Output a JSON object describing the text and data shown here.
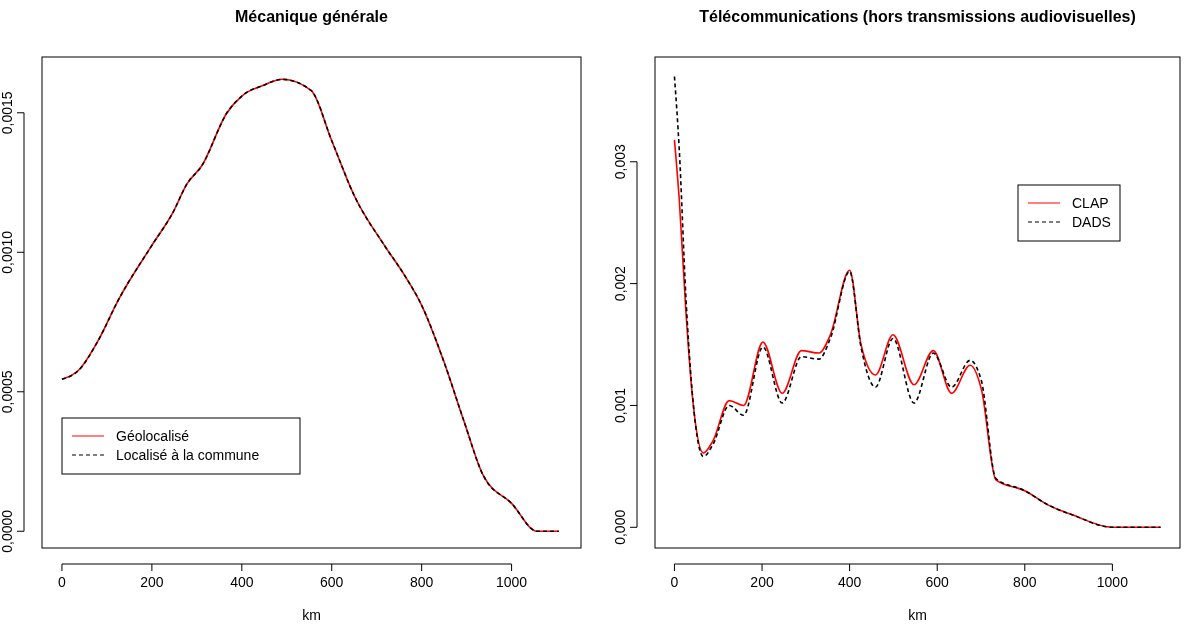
{
  "chart_data": [
    {
      "type": "line",
      "title": "Mécanique générale",
      "xlabel": "km",
      "xlim": [
        -44.4,
        1154.4
      ],
      "xticks": [
        0,
        200,
        400,
        600,
        800,
        1000
      ],
      "ylim": [
        -6e-05,
        0.0017
      ],
      "yticks": [
        {
          "value": 0,
          "label": "0,0000"
        },
        {
          "value": 0.0005,
          "label": "0,0005"
        },
        {
          "value": 0.001,
          "label": "0,0010"
        },
        {
          "value": 0.0015,
          "label": "0,0015"
        }
      ],
      "grid": false,
      "legend": "bottom left",
      "marker": "none",
      "x": [
        0,
        37,
        81,
        125,
        200,
        246,
        278,
        311,
        367,
        400,
        450,
        490,
        554,
        600,
        651,
        717,
        761,
        800,
        849,
        893,
        937,
        1000,
        1057,
        1105
      ],
      "series": [
        {
          "name": "Géolocalisé",
          "color": "#ff0000",
          "line_style": "solid",
          "values": [
            0.000545,
            0.000577,
            0.000685,
            0.000828,
            0.001025,
            0.00114,
            0.001245,
            0.00131,
            0.0015,
            0.00156,
            0.0016,
            0.00162,
            0.00158,
            0.0014,
            0.0012,
            0.001025,
            0.00092,
            0.00081,
            0.00061,
            0.0004,
            0.0002,
            0.0001,
            0,
            0
          ]
        },
        {
          "name": "Localisé à la commune",
          "color": "#000000",
          "line_style": "dashed",
          "values": [
            0.000545,
            0.000577,
            0.000685,
            0.000828,
            0.001025,
            0.00114,
            0.001245,
            0.00131,
            0.0015,
            0.00156,
            0.0016,
            0.00162,
            0.00158,
            0.0014,
            0.0012,
            0.001025,
            0.00092,
            0.00081,
            0.00061,
            0.0004,
            0.0002,
            0.0001,
            0,
            0
          ]
        }
      ]
    },
    {
      "type": "line",
      "title": "Télécommunications (hors transmissions audiovisuelles)",
      "xlabel": "km",
      "xlim": [
        -44.4,
        1154.4
      ],
      "xticks": [
        0,
        200,
        400,
        600,
        800,
        1000
      ],
      "ylim": [
        -0.00017,
        0.00386
      ],
      "yticks": [
        {
          "value": 0,
          "label": "0,000"
        },
        {
          "value": 0.001,
          "label": "0,001"
        },
        {
          "value": 0.002,
          "label": "0,002"
        },
        {
          "value": 0.003,
          "label": "0,003"
        }
      ],
      "grid": false,
      "legend": "top right",
      "marker": "none",
      "x": [
        0,
        11,
        26,
        42,
        66,
        88,
        125,
        158,
        202,
        246,
        290,
        330,
        356,
        400,
        426,
        459,
        499,
        547,
        591,
        633,
        675,
        701,
        734,
        800,
        855,
        910,
        1000,
        1110
      ],
      "series": [
        {
          "name": "CLAP",
          "color": "#ff0000",
          "line_style": "solid",
          "values": [
            0.00318,
            0.00269,
            0.00178,
            0.00104,
            0.00061,
            0.00071,
            0.00104,
            0.001,
            0.00152,
            0.0011,
            0.00145,
            0.00143,
            0.00158,
            0.00211,
            0.0015,
            0.00125,
            0.00158,
            0.00117,
            0.00145,
            0.0011,
            0.00133,
            0.00113,
            0.00039,
            0.0003,
            0.00018,
            0.0001,
            0,
            0
          ]
        },
        {
          "name": "DADS",
          "color": "#000000",
          "line_style": "dashed",
          "values": [
            0.0037,
            0.0031,
            0.0019,
            0.00105,
            0.00058,
            0.00068,
            0.001,
            0.00092,
            0.00148,
            0.00102,
            0.0014,
            0.00138,
            0.00155,
            0.0021,
            0.00148,
            0.00115,
            0.00155,
            0.00102,
            0.00143,
            0.00115,
            0.00137,
            0.0012,
            0.0004,
            0.0003,
            0.00018,
            0.0001,
            0,
            0
          ]
        }
      ]
    }
  ]
}
